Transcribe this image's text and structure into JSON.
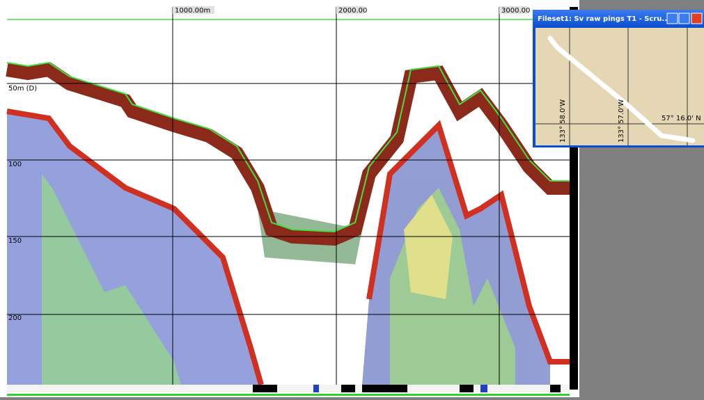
{
  "echogram": {
    "distance_labels": [
      "1000.00m",
      "2000.00",
      "3000.00"
    ],
    "depth_labels": [
      "50m (D)",
      "100",
      "150",
      "200"
    ]
  },
  "map_window": {
    "title": "Fileset1: Sv raw pings T1 - Scru...",
    "longitude_labels": [
      "133° 58.0'W",
      "133° 57.0'W"
    ],
    "latitude_label": "57° 16.0' N"
  }
}
